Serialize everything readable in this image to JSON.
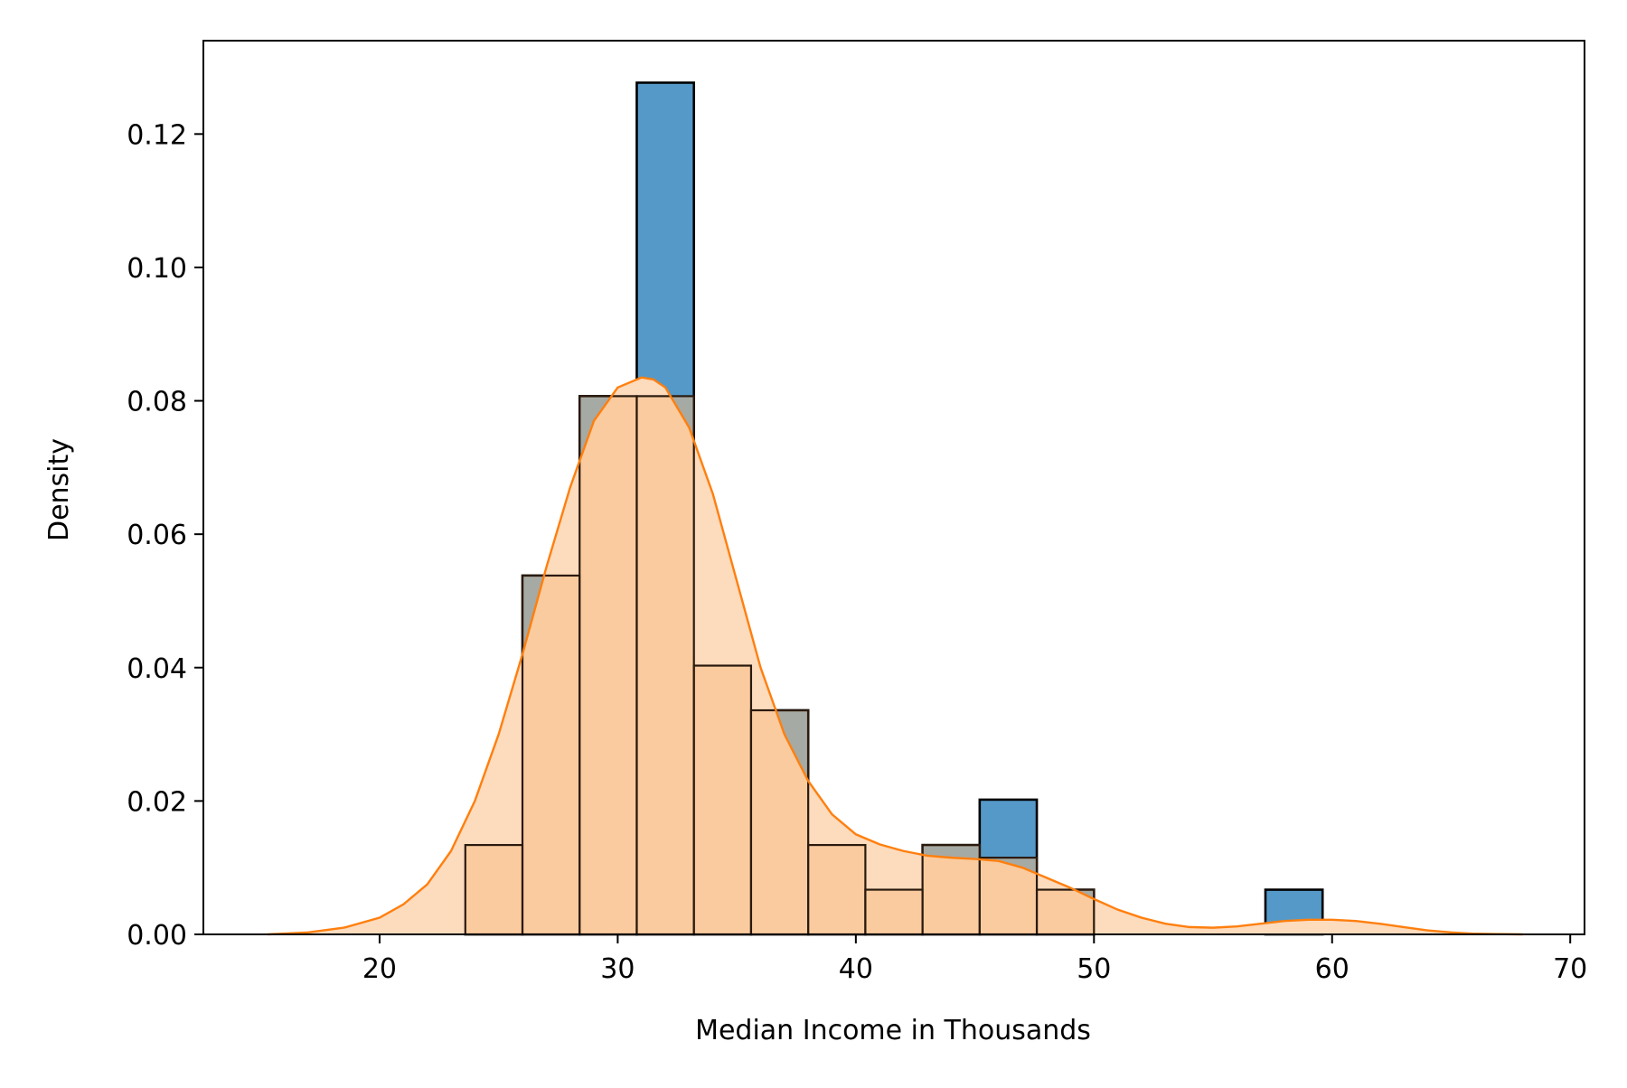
{
  "chart_data": {
    "type": "bar",
    "xlabel": "Median Income in Thousands",
    "ylabel": "Density",
    "xlim": [
      12.6,
      70.6
    ],
    "ylim": [
      0.0,
      0.134
    ],
    "xticks": [
      20,
      30,
      40,
      50,
      60,
      70
    ],
    "yticks": [
      0.0,
      0.02,
      0.04,
      0.06,
      0.08,
      0.1,
      0.12
    ],
    "grid": false,
    "legend": "none",
    "series": [
      {
        "kind": "histogram",
        "color": "#5599C8",
        "edge_color": "#000000",
        "bins": [
          {
            "x0": 23.6,
            "x1": 26.0,
            "density": 0.0134
          },
          {
            "x0": 26.0,
            "x1": 28.4,
            "density": 0.0538
          },
          {
            "x0": 28.4,
            "x1": 30.8,
            "density": 0.0807
          },
          {
            "x0": 30.8,
            "x1": 33.2,
            "density": 0.1277
          },
          {
            "x0": 33.2,
            "x1": 35.6,
            "density": 0.0403
          },
          {
            "x0": 35.6,
            "x1": 38.0,
            "density": 0.0336
          },
          {
            "x0": 38.0,
            "x1": 40.4,
            "density": 0.0134
          },
          {
            "x0": 40.4,
            "x1": 42.8,
            "density": 0.0067
          },
          {
            "x0": 42.8,
            "x1": 45.2,
            "density": 0.0134
          },
          {
            "x0": 45.2,
            "x1": 47.6,
            "density": 0.0202
          },
          {
            "x0": 47.6,
            "x1": 50.0,
            "density": 0.0067
          },
          {
            "x0": 50.0,
            "x1": 52.4,
            "density": 0.0
          },
          {
            "x0": 52.4,
            "x1": 54.8,
            "density": 0.0
          },
          {
            "x0": 54.8,
            "x1": 57.2,
            "density": 0.0
          },
          {
            "x0": 57.2,
            "x1": 59.6,
            "density": 0.0067
          }
        ]
      },
      {
        "kind": "histogram",
        "color": "#F8BB82",
        "edge_color": "#2a1a0e",
        "bins": [
          {
            "x0": 23.6,
            "x1": 26.0,
            "density": 0.0134
          },
          {
            "x0": 26.0,
            "x1": 28.4,
            "density": 0.0538
          },
          {
            "x0": 28.4,
            "x1": 30.8,
            "density": 0.0807
          },
          {
            "x0": 30.8,
            "x1": 33.2,
            "density": 0.0807
          },
          {
            "x0": 33.2,
            "x1": 35.6,
            "density": 0.0403
          },
          {
            "x0": 35.6,
            "x1": 38.0,
            "density": 0.0336
          },
          {
            "x0": 38.0,
            "x1": 40.4,
            "density": 0.0134
          },
          {
            "x0": 40.4,
            "x1": 42.8,
            "density": 0.0067
          },
          {
            "x0": 42.8,
            "x1": 45.2,
            "density": 0.0134
          },
          {
            "x0": 45.2,
            "x1": 47.6,
            "density": 0.0115
          },
          {
            "x0": 47.6,
            "x1": 50.0,
            "density": 0.0067
          }
        ]
      },
      {
        "kind": "kde",
        "color": "#FF7F0E",
        "fill_color": "#FDDBBD",
        "x": [
          15.3,
          17,
          18.5,
          20,
          21,
          22,
          23,
          24,
          25,
          26,
          27,
          28,
          29,
          30,
          31,
          31.5,
          32,
          33,
          34,
          35,
          36,
          37,
          38,
          39,
          40,
          41,
          42,
          43,
          44,
          45,
          46,
          47,
          48,
          49,
          50,
          51,
          52,
          53,
          54,
          55,
          56,
          57,
          58,
          59,
          60,
          61,
          62,
          63,
          64,
          65,
          66,
          68
        ],
        "y": [
          0.0,
          0.0003,
          0.001,
          0.0025,
          0.0045,
          0.0075,
          0.0125,
          0.02,
          0.03,
          0.042,
          0.055,
          0.067,
          0.077,
          0.082,
          0.0835,
          0.0832,
          0.082,
          0.076,
          0.066,
          0.053,
          0.04,
          0.03,
          0.023,
          0.018,
          0.015,
          0.0135,
          0.0125,
          0.0118,
          0.0115,
          0.0113,
          0.011,
          0.01,
          0.0085,
          0.007,
          0.0053,
          0.0037,
          0.0025,
          0.0016,
          0.0011,
          0.001,
          0.0012,
          0.0016,
          0.002,
          0.0022,
          0.0022,
          0.002,
          0.0016,
          0.0011,
          0.0006,
          0.0003,
          0.0001,
          0.0
        ]
      }
    ]
  }
}
